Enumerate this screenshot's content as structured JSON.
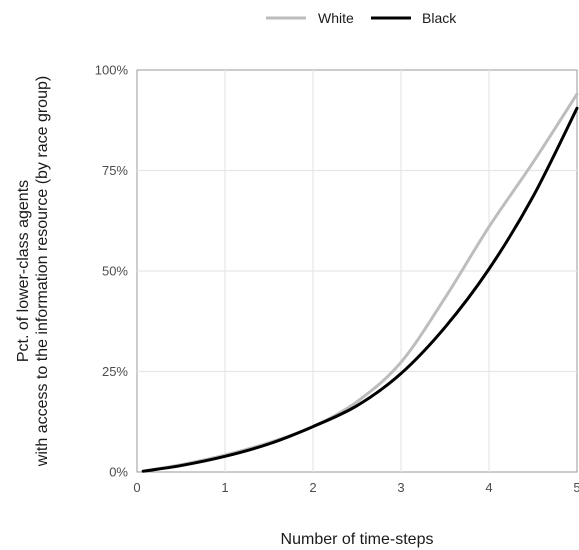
{
  "chart_data": {
    "type": "line",
    "xlabel": "Number of time-steps",
    "ylabel_line1": "Pct. of lower-class agents",
    "ylabel_line2": "with access to the information resource (by race group)",
    "xlim": [
      0,
      5
    ],
    "ylim": [
      0,
      100
    ],
    "x_ticks": [
      0,
      1,
      2,
      3,
      4,
      5
    ],
    "x_tick_labels": [
      "0",
      "1",
      "2",
      "3",
      "4",
      "5"
    ],
    "y_ticks": [
      0,
      25,
      50,
      75,
      100
    ],
    "y_tick_labels": [
      "0%",
      "25%",
      "50%",
      "75%",
      "100%"
    ],
    "grid": true,
    "legend_position": "top",
    "series": [
      {
        "name": "White",
        "color": "#bdbdbd",
        "x": [
          0.07,
          0.5,
          1.0,
          1.5,
          2.0,
          2.5,
          3.0,
          3.5,
          4.0,
          4.5,
          5.0
        ],
        "y": [
          0.2,
          1.8,
          4.2,
          7.3,
          11.3,
          17.5,
          27.3,
          43.3,
          61.0,
          77.0,
          94.0
        ]
      },
      {
        "name": "Black",
        "color": "#000000",
        "x": [
          0.07,
          0.5,
          1.0,
          1.5,
          2.0,
          2.5,
          3.0,
          3.5,
          4.0,
          4.5,
          5.0
        ],
        "y": [
          0.2,
          1.6,
          3.9,
          7.0,
          11.3,
          16.5,
          24.5,
          36.0,
          50.5,
          68.5,
          90.5
        ]
      }
    ]
  }
}
